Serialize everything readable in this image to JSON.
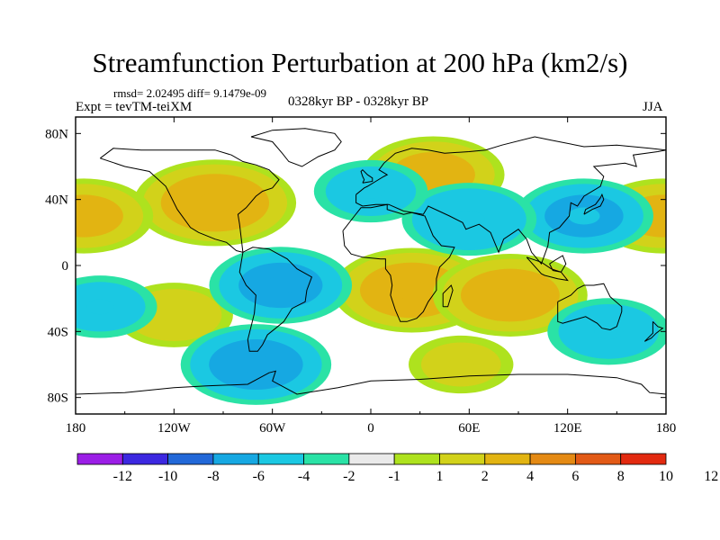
{
  "figure": {
    "title": "Streamfunction Perturbation at 200 hPa (km2/s)",
    "stats_line": "rmsd= 2.02495  diff= 9.1479e-09",
    "experiment": "Expt = tevTM-teiXM",
    "period": "0328kyr BP - 0328kyr BP",
    "season": "JJA"
  },
  "map": {
    "lon_range": [
      -180,
      180
    ],
    "lat_range": [
      -90,
      90
    ],
    "lon_ticks": [
      {
        "lon": -180,
        "label": "180"
      },
      {
        "lon": -120,
        "label": "120W"
      },
      {
        "lon": -60,
        "label": "60W"
      },
      {
        "lon": 0,
        "label": "0"
      },
      {
        "lon": 60,
        "label": "60E"
      },
      {
        "lon": 120,
        "label": "120E"
      },
      {
        "lon": 180,
        "label": "180"
      }
    ],
    "lat_ticks": [
      {
        "lat": 80,
        "label": "80N"
      },
      {
        "lat": 40,
        "label": "40N"
      },
      {
        "lat": 0,
        "label": "0"
      },
      {
        "lat": -40,
        "label": "40S"
      },
      {
        "lat": -80,
        "label": "80S"
      }
    ],
    "land_color": "#ebebeb",
    "background_color": "#ffffff",
    "coastline_color": "#000000"
  },
  "chart_data": {
    "type": "heatmap",
    "title": "Streamfunction Perturbation at 200 hPa (km2/s)",
    "units": "km2/s",
    "levels": [
      "-12",
      "-10",
      "-8",
      "-6",
      "-4",
      "-2",
      "-1",
      "1",
      "2",
      "4",
      "6",
      "8",
      "10",
      "12"
    ],
    "colors": [
      "#9b1ee6",
      "#3c28e0",
      "#2268d8",
      "#16a8e2",
      "#1bc8e2",
      "#2ae2a6",
      "#eaeaea",
      "#aee21e",
      "#d2d21a",
      "#e2b412",
      "#e48a14",
      "#e25a16",
      "#e22a10"
    ],
    "field_centers": [
      {
        "lon": -95,
        "lat": 38,
        "value": 5.2
      },
      {
        "lon": -175,
        "lat": 30,
        "value": 4.0
      },
      {
        "lon": 178,
        "lat": 30,
        "value": 4.0
      },
      {
        "lon": 38,
        "lat": 55,
        "value": 4.2
      },
      {
        "lon": 25,
        "lat": -15,
        "value": 5.0
      },
      {
        "lon": 85,
        "lat": -18,
        "value": 4.8
      },
      {
        "lon": -120,
        "lat": -30,
        "value": 3.0
      },
      {
        "lon": 55,
        "lat": -60,
        "value": 2.4
      },
      {
        "lon": -55,
        "lat": -12,
        "value": -4.2
      },
      {
        "lon": -70,
        "lat": -60,
        "value": -4.6
      },
      {
        "lon": 130,
        "lat": 30,
        "value": -4.0
      },
      {
        "lon": 60,
        "lat": 28,
        "value": -3.8
      },
      {
        "lon": 145,
        "lat": -40,
        "value": -3.2
      },
      {
        "lon": -165,
        "lat": -25,
        "value": -2.8
      },
      {
        "lon": 0,
        "lat": 45,
        "value": -2.8
      }
    ]
  }
}
